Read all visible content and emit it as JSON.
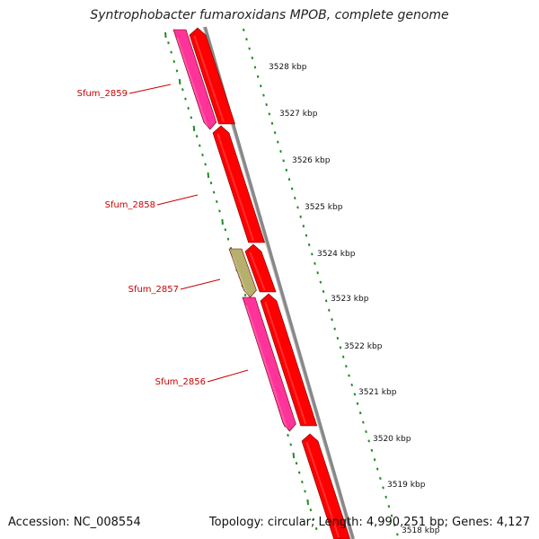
{
  "title": "Syntrophobacter fumaroxidans MPOB, complete genome",
  "accession_text": "Accession: NC_008554",
  "summary_text": "Topology: circular; Length: 4,990,251 bp; Genes: 4,127",
  "colors": {
    "cds": "#ff0000",
    "gene": "#ff3399",
    "other": "#b5b06c",
    "backbone": "#888888",
    "tick": "#228b22",
    "label": "#cc0000"
  },
  "ruler_labels": [
    "3528 kbp",
    "3527 kbp",
    "3526 kbp",
    "3525 kbp",
    "3524 kbp",
    "3523 kbp",
    "3522 kbp",
    "3521 kbp",
    "3520 kbp",
    "3519 kbp",
    "3518 kbp"
  ],
  "gene_labels": [
    "Sfum_2859",
    "Sfum_2858",
    "Sfum_2857",
    "Sfum_2856"
  ]
}
